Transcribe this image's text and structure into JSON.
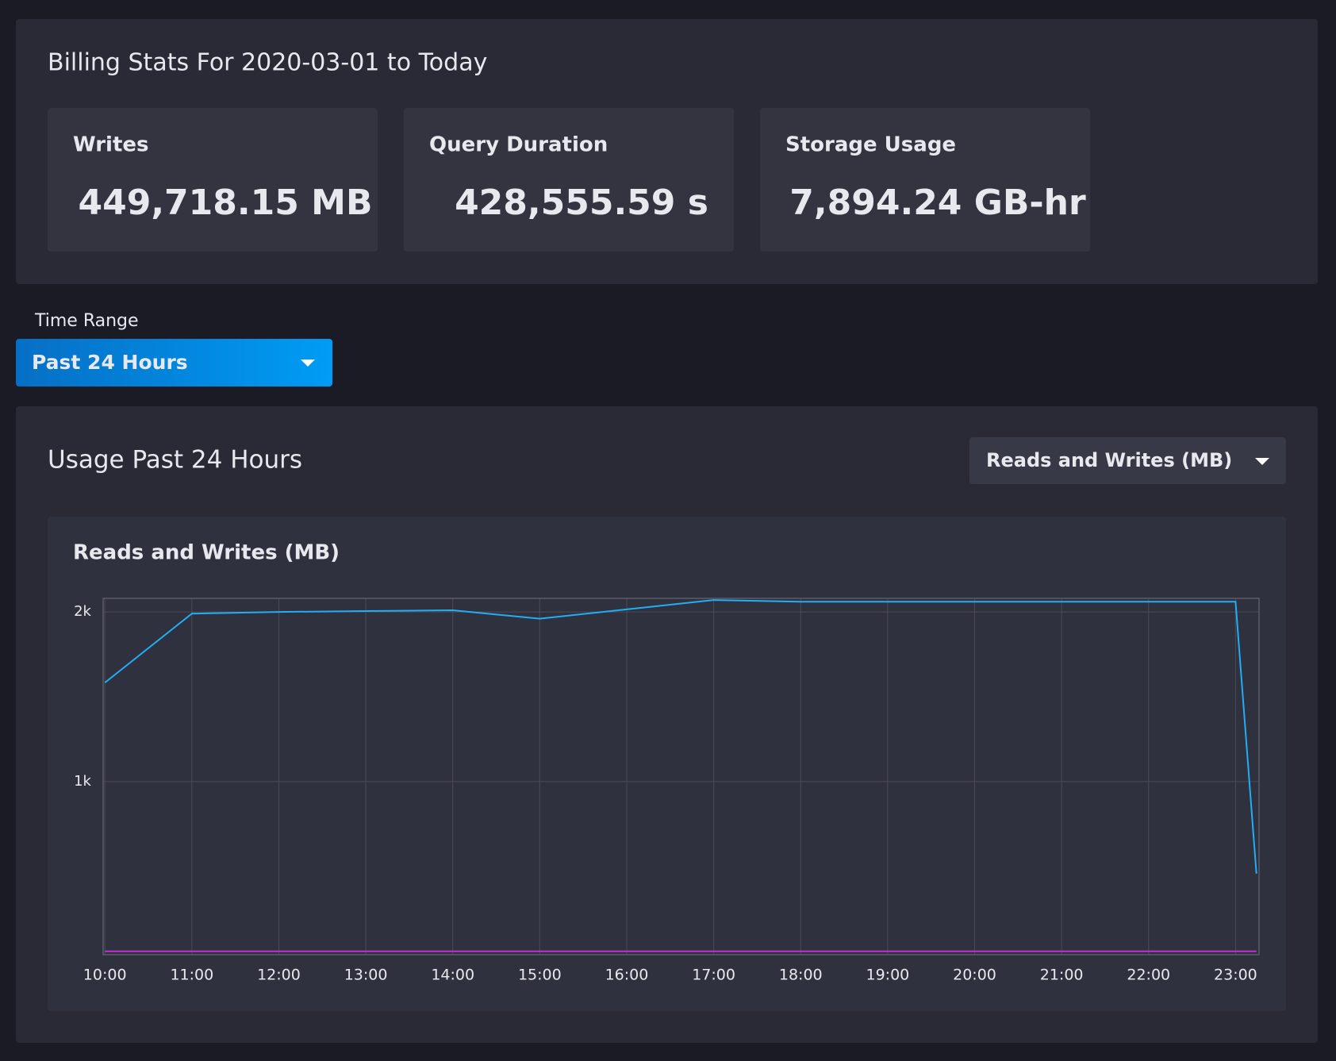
{
  "billing": {
    "title": "Billing Stats For 2020-03-01 to Today",
    "cards": [
      {
        "label": "Writes",
        "value": "449,718.15 MB"
      },
      {
        "label": "Query Duration",
        "value": "428,555.59 s"
      },
      {
        "label": "Storage Usage",
        "value": "7,894.24 GB-hr"
      }
    ]
  },
  "time_range": {
    "label": "Time Range",
    "selected": "Past 24 Hours"
  },
  "usage": {
    "title": "Usage Past 24 Hours",
    "selector": "Reads and Writes (MB)"
  },
  "chart_data": {
    "type": "line",
    "title": "Reads and Writes (MB)",
    "x": [
      10,
      11,
      12,
      13,
      14,
      15,
      16,
      17,
      18,
      19,
      20,
      21,
      22,
      23,
      23.24
    ],
    "series": [
      {
        "color": "#22adf6",
        "values": [
          1583,
          1990,
          2000,
          2005,
          2010,
          1960,
          2015,
          2070,
          2060,
          2060,
          2060,
          2060,
          2060,
          2060,
          457
        ]
      },
      {
        "color": "#c22fd6",
        "values": [
          0,
          0,
          0,
          0,
          0,
          0,
          0,
          0,
          0,
          0,
          0,
          0,
          0,
          0,
          0
        ]
      }
    ],
    "xlim": [
      9.98,
      23.27
    ],
    "ylim": [
      -20,
      2080
    ],
    "xticks": [
      {
        "value": 10,
        "label": "10:00"
      },
      {
        "value": 11,
        "label": "11:00"
      },
      {
        "value": 12,
        "label": "12:00"
      },
      {
        "value": 13,
        "label": "13:00"
      },
      {
        "value": 14,
        "label": "14:00"
      },
      {
        "value": 15,
        "label": "15:00"
      },
      {
        "value": 16,
        "label": "16:00"
      },
      {
        "value": 17,
        "label": "17:00"
      },
      {
        "value": 18,
        "label": "18:00"
      },
      {
        "value": 19,
        "label": "19:00"
      },
      {
        "value": 20,
        "label": "20:00"
      },
      {
        "value": 21,
        "label": "21:00"
      },
      {
        "value": 22,
        "label": "22:00"
      },
      {
        "value": 23,
        "label": "23:00"
      }
    ],
    "yticks": [
      {
        "value": 1000,
        "label": "1k"
      },
      {
        "value": 2000,
        "label": "2k"
      }
    ],
    "grid": true
  }
}
